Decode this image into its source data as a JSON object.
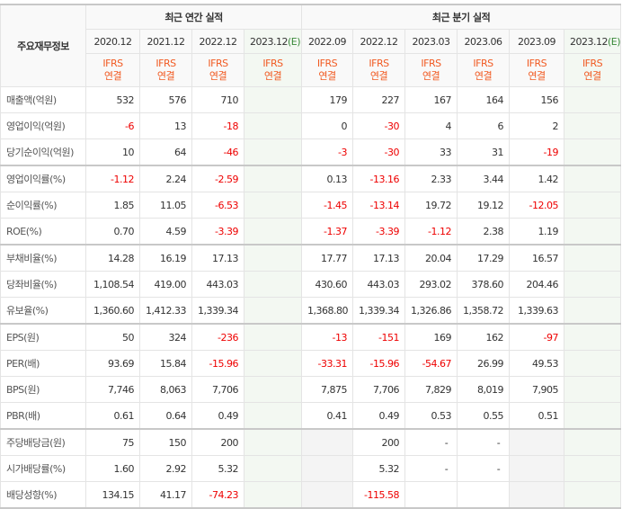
{
  "header": {
    "row_label": "주요재무정보",
    "annual_title": "최근 연간 실적",
    "quarter_title": "최근 분기 실적",
    "annual_periods": [
      "2020.12",
      "2021.12",
      "2022.12",
      "2023.12"
    ],
    "quarter_periods": [
      "2022.09",
      "2022.12",
      "2023.03",
      "2023.06",
      "2023.09",
      "2023.12"
    ],
    "estimate_mark": "(E)",
    "ifrs": "IFRS",
    "consolidated": "연결"
  },
  "rows": [
    {
      "label": "매출액(억원)",
      "annual": [
        "532",
        "576",
        "710",
        ""
      ],
      "quarter": [
        "179",
        "227",
        "167",
        "164",
        "156",
        ""
      ]
    },
    {
      "label": "영업이익(억원)",
      "annual": [
        "-6",
        "13",
        "-18",
        ""
      ],
      "quarter": [
        "0",
        "-30",
        "4",
        "6",
        "2",
        ""
      ]
    },
    {
      "label": "당기순이익(억원)",
      "annual": [
        "10",
        "64",
        "-46",
        ""
      ],
      "quarter": [
        "-3",
        "-30",
        "33",
        "31",
        "-19",
        ""
      ]
    },
    {
      "label": "영업이익률(%)",
      "annual": [
        "-1.12",
        "2.24",
        "-2.59",
        ""
      ],
      "quarter": [
        "0.13",
        "-13.16",
        "2.33",
        "3.44",
        "1.42",
        ""
      ]
    },
    {
      "label": "순이익률(%)",
      "annual": [
        "1.85",
        "11.05",
        "-6.53",
        ""
      ],
      "quarter": [
        "-1.45",
        "-13.14",
        "19.72",
        "19.12",
        "-12.05",
        ""
      ]
    },
    {
      "label": "ROE(%)",
      "annual": [
        "0.70",
        "4.59",
        "-3.39",
        ""
      ],
      "quarter": [
        "-1.37",
        "-3.39",
        "-1.12",
        "2.38",
        "1.19",
        ""
      ]
    },
    {
      "label": "부채비율(%)",
      "annual": [
        "14.28",
        "16.19",
        "17.13",
        ""
      ],
      "quarter": [
        "17.77",
        "17.13",
        "20.04",
        "17.29",
        "16.57",
        ""
      ]
    },
    {
      "label": "당좌비율(%)",
      "annual": [
        "1,108.54",
        "419.00",
        "443.03",
        ""
      ],
      "quarter": [
        "430.60",
        "443.03",
        "293.02",
        "378.60",
        "204.46",
        ""
      ]
    },
    {
      "label": "유보율(%)",
      "annual": [
        "1,360.60",
        "1,412.33",
        "1,339.34",
        ""
      ],
      "quarter": [
        "1,368.80",
        "1,339.34",
        "1,326.86",
        "1,358.72",
        "1,339.63",
        ""
      ]
    },
    {
      "label": "EPS(원)",
      "annual": [
        "50",
        "324",
        "-236",
        ""
      ],
      "quarter": [
        "-13",
        "-151",
        "169",
        "162",
        "-97",
        ""
      ]
    },
    {
      "label": "PER(배)",
      "annual": [
        "93.69",
        "15.84",
        "-15.96",
        ""
      ],
      "quarter": [
        "-33.31",
        "-15.96",
        "-54.67",
        "26.99",
        "49.53",
        ""
      ]
    },
    {
      "label": "BPS(원)",
      "annual": [
        "7,746",
        "8,063",
        "7,706",
        ""
      ],
      "quarter": [
        "7,875",
        "7,706",
        "7,829",
        "8,019",
        "7,905",
        ""
      ]
    },
    {
      "label": "PBR(배)",
      "annual": [
        "0.61",
        "0.64",
        "0.49",
        ""
      ],
      "quarter": [
        "0.41",
        "0.49",
        "0.53",
        "0.55",
        "0.51",
        ""
      ]
    },
    {
      "label": "주당배당금(원)",
      "annual": [
        "75",
        "150",
        "200",
        ""
      ],
      "quarter": [
        "",
        "200",
        "-",
        "-",
        "",
        ""
      ]
    },
    {
      "label": "시가배당률(%)",
      "annual": [
        "1.60",
        "2.92",
        "5.32",
        ""
      ],
      "quarter": [
        "",
        "5.32",
        "-",
        "-",
        "",
        ""
      ]
    },
    {
      "label": "배당성향(%)",
      "annual": [
        "134.15",
        "41.17",
        "-74.23",
        ""
      ],
      "quarter": [
        "",
        "-115.58",
        "",
        "",
        "",
        ""
      ]
    }
  ]
}
